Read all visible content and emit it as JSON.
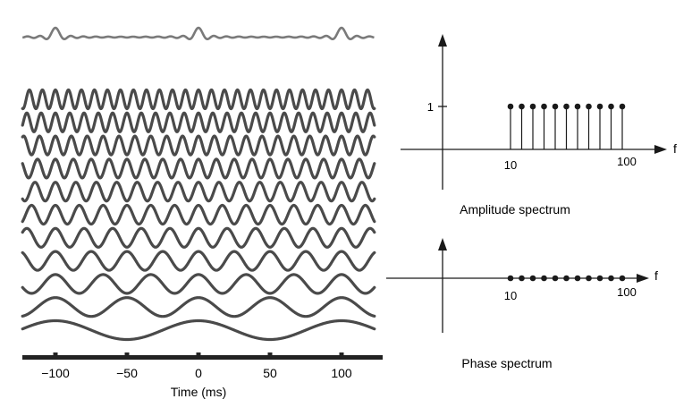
{
  "time_panel": {
    "xlabel": "Time (ms)",
    "ticks": [
      -100,
      -50,
      0,
      50,
      100
    ],
    "xlim": [
      -125,
      125
    ],
    "sinusoid_frequencies_hz": [
      10,
      20,
      30,
      40,
      50,
      60,
      70,
      80,
      90,
      100,
      110
    ],
    "sum_label": ""
  },
  "amplitude_panel": {
    "caption": "Amplitude spectrum",
    "axis_symbol": "f",
    "y_tick_label": "1",
    "x_tick_labels": [
      "10",
      "100"
    ],
    "frequencies": [
      10,
      20,
      30,
      40,
      50,
      60,
      70,
      80,
      90,
      100,
      110
    ],
    "amplitudes": [
      1,
      1,
      1,
      1,
      1,
      1,
      1,
      1,
      1,
      1,
      1
    ]
  },
  "phase_panel": {
    "caption": "Phase spectrum",
    "axis_symbol": "f",
    "x_tick_labels": [
      "10",
      "100"
    ],
    "frequencies": [
      10,
      20,
      30,
      40,
      50,
      60,
      70,
      80,
      90,
      100,
      110
    ],
    "phases": [
      0,
      0,
      0,
      0,
      0,
      0,
      0,
      0,
      0,
      0,
      0
    ]
  },
  "colors": {
    "wave": "#4a4a4a",
    "sum_wave": "#7a7a7a",
    "axis": "#1a1a1a",
    "axis_bar": "#222222"
  }
}
